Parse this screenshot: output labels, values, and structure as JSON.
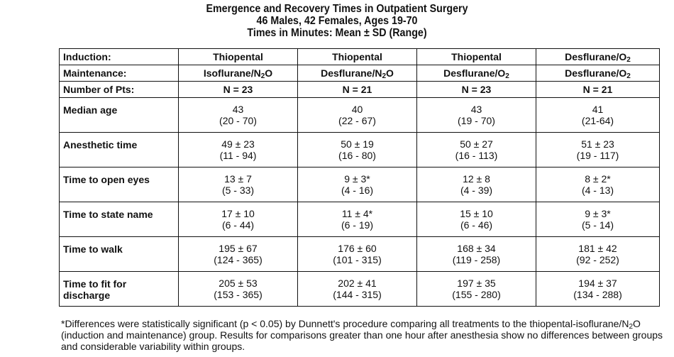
{
  "header": {
    "title": "Emergence and Recovery Times in Outpatient Surgery",
    "subtitle": "46 Males, 42 Females, Ages 19-70",
    "units": "Times in Minutes: Mean ± SD (Range)"
  },
  "table": {
    "induction": {
      "label": "Induction:",
      "values": [
        {
          "main": "Thiopental",
          "sub": "",
          "rest": ""
        },
        {
          "main": "Thiopental",
          "sub": "",
          "rest": ""
        },
        {
          "main": "Thiopental",
          "sub": "",
          "rest": ""
        },
        {
          "main": "Desflurane/O",
          "sub": "2",
          "rest": ""
        }
      ]
    },
    "maintenance": {
      "label": "Maintenance:",
      "values": [
        {
          "main": "Isoflurane/N",
          "sub": "2",
          "rest": "O"
        },
        {
          "main": "Desflurane/N",
          "sub": "2",
          "rest": "O"
        },
        {
          "main": "Desflurane/O",
          "sub": "2",
          "rest": ""
        },
        {
          "main": "Desflurane/O",
          "sub": "2",
          "rest": ""
        }
      ]
    },
    "number_pts": {
      "label": "Number of Pts:",
      "values": [
        "N = 23",
        "N = 21",
        "N = 23",
        "N = 21"
      ]
    },
    "rows": [
      {
        "label": "Median age",
        "cells": [
          {
            "mean": "43",
            "range": "(20 - 70)"
          },
          {
            "mean": "40",
            "range": "(22 - 67)"
          },
          {
            "mean": "43",
            "range": "(19 - 70)"
          },
          {
            "mean": "41",
            "range": "(21-64)"
          }
        ]
      },
      {
        "label": "Anesthetic time",
        "cells": [
          {
            "mean": "49 ± 23",
            "range": "(11 - 94)"
          },
          {
            "mean": "50 ± 19",
            "range": "(16 - 80)"
          },
          {
            "mean": "50 ± 27",
            "range": "(16 - 113)"
          },
          {
            "mean": "51 ± 23",
            "range": "(19 - 117)"
          }
        ]
      },
      {
        "label": "Time to open eyes",
        "cells": [
          {
            "mean": "13 ± 7",
            "range": "(5 - 33)"
          },
          {
            "mean": "9 ± 3*",
            "range": "(4 - 16)"
          },
          {
            "mean": "12 ± 8",
            "range": "(4 - 39)"
          },
          {
            "mean": "8 ± 2*",
            "range": "(4 - 13)"
          }
        ]
      },
      {
        "label": "Time to state name",
        "cells": [
          {
            "mean": "17 ± 10",
            "range": "(6 - 44)"
          },
          {
            "mean": "11 ± 4*",
            "range": "(6 - 19)"
          },
          {
            "mean": "15 ± 10",
            "range": "(6 - 46)"
          },
          {
            "mean": "9 ± 3*",
            "range": "(5 - 14)"
          }
        ]
      },
      {
        "label": "Time to walk",
        "cells": [
          {
            "mean": "195 ± 67",
            "range": "(124 - 365)"
          },
          {
            "mean": "176 ± 60",
            "range": "(101 - 315)"
          },
          {
            "mean": "168 ± 34",
            "range": "(119 - 258)"
          },
          {
            "mean": "181 ± 42",
            "range": "(92 - 252)"
          }
        ]
      },
      {
        "label": "Time to fit for discharge",
        "cells": [
          {
            "mean": "205 ± 53",
            "range": "(153 - 365)"
          },
          {
            "mean": "202 ± 41",
            "range": "(144 - 315)"
          },
          {
            "mean": "197 ± 35",
            "range": "(155 - 280)"
          },
          {
            "mean": "194 ± 37",
            "range": "(134 - 288)"
          }
        ]
      }
    ]
  },
  "footnote": {
    "part1": "*Differences were statistically significant (p < 0.05) by Dunnett's procedure comparing all treatments to the thiopental-isoflurane/N",
    "sub": "2",
    "part2": "O (induction and maintenance) group. Results for comparisons greater than one hour after anesthesia show no differences between groups and considerable variability within groups."
  }
}
